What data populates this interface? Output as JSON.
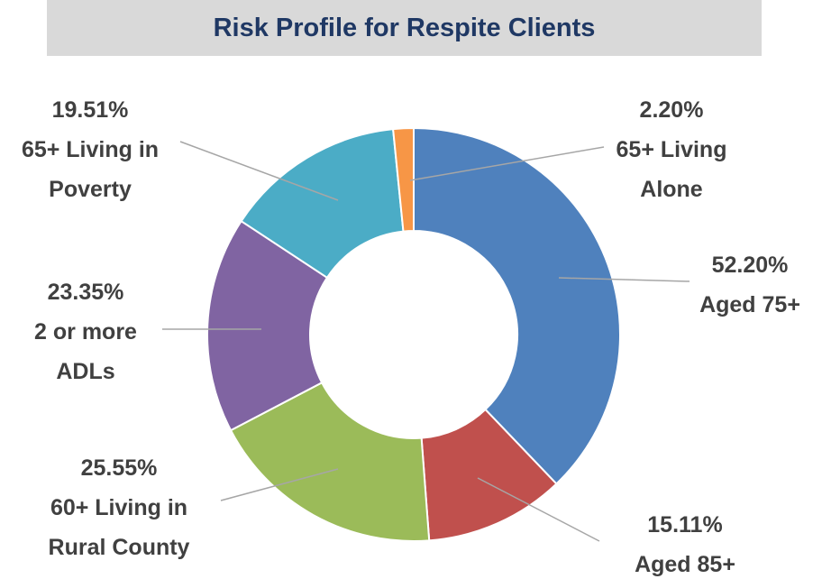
{
  "chart_data": {
    "type": "donut",
    "title": "Risk Profile for Respite Clients",
    "categories": [
      "Aged 75+",
      "Aged 85+",
      "60+ Living in Rural County",
      "2 or more ADLs",
      "65+ Living in Poverty",
      "65+ Living Alone"
    ],
    "values": [
      52.2,
      15.11,
      25.55,
      23.35,
      19.51,
      2.2
    ],
    "value_labels": [
      "52.20%",
      "15.11%",
      "25.55%",
      "23.35%",
      "19.51%",
      "2.20%"
    ],
    "colors": [
      "#4f81bd",
      "#c0504d",
      "#9bbb59",
      "#8064a2",
      "#4bacc6",
      "#f79646"
    ]
  }
}
